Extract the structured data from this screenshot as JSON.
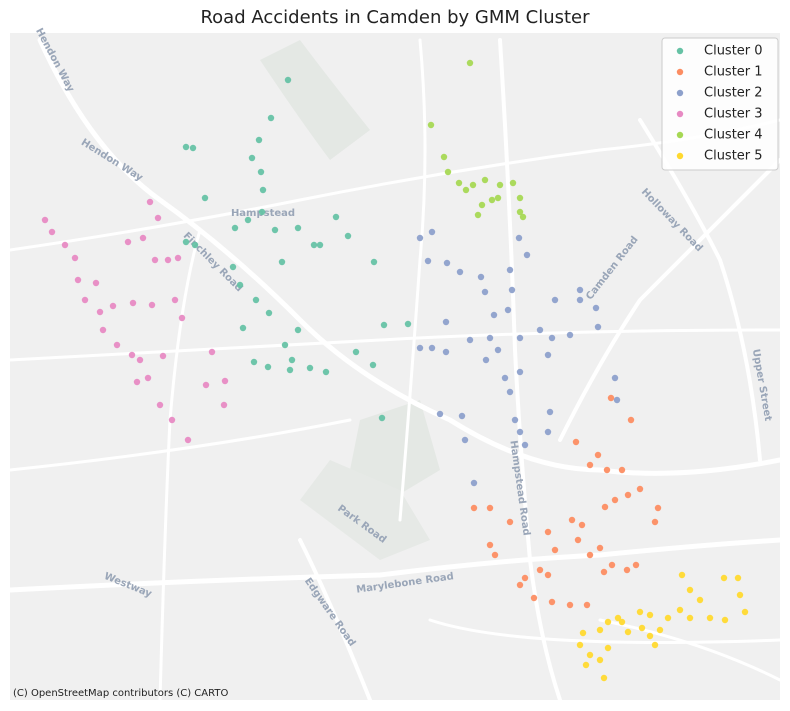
{
  "chart_data": {
    "type": "scatter",
    "title": "Road Accidents in Camden by GMM Cluster",
    "attribution": "(C) OpenStreetMap contributors (C) CARTO",
    "annotations": [
      "Hampstead",
      "Hendon Way",
      "Hendon Way",
      "Finchley Road",
      "Camden Road",
      "Holloway Road",
      "Upper Street",
      "Hampstead Road",
      "Park Road",
      "Marylebone Road",
      "Westway",
      "Edgware Road"
    ],
    "xlim": [
      -0.216,
      -0.1005
    ],
    "ylim": [
      51.508,
      51.5747
    ],
    "legend": "upper right",
    "series": [
      {
        "name": "Cluster 0",
        "color": "#66c2a5",
        "x": [
          -0.1743,
          -0.17685,
          -0.17865,
          -0.1797,
          -0.17835,
          -0.17805,
          -0.1896,
          -0.18855,
          -0.18675,
          -0.18225,
          -0.1803,
          -0.1782,
          -0.17625,
          -0.1728,
          -0.1704,
          -0.1671,
          -0.1653,
          -0.1614,
          -0.1752,
          -0.1815,
          -0.1791,
          -0.17715,
          -0.18105,
          -0.17475,
          -0.1737,
          -0.1773,
          -0.174,
          -0.171,
          -0.1686,
          -0.16155,
          -0.1599,
          -0.1563,
          -0.1641,
          -0.1602,
          -0.1728,
          -0.1794,
          -0.18825,
          -0.1896,
          -0.18255,
          -0.1695
        ],
        "values": [
          51.57,
          51.5662,
          51.564,
          51.5622,
          51.5608,
          51.559,
          51.5633,
          51.5632,
          51.5582,
          51.5552,
          51.556,
          51.5568,
          51.555,
          51.5552,
          51.5535,
          51.5563,
          51.5544,
          51.5518,
          51.5518,
          51.5495,
          51.548,
          51.5467,
          51.5452,
          51.5435,
          51.542,
          51.5413,
          51.541,
          51.5412,
          51.5408,
          51.5415,
          51.5455,
          51.5456,
          51.5428,
          51.5362,
          51.545,
          51.5418,
          51.5535,
          51.5538,
          51.5513,
          51.5535
        ]
      },
      {
        "name": "Cluster 1",
        "color": "#fc8d62",
        "x": [
          -0.12285,
          -0.12585,
          -0.1311,
          -0.1278,
          -0.129,
          -0.12645,
          -0.1242,
          -0.1215,
          -0.1233,
          -0.12525,
          -0.12675,
          -0.1317,
          -0.1302,
          -0.1308,
          -0.1353,
          -0.144,
          -0.1464,
          -0.141,
          -0.144,
          -0.14325,
          -0.13875,
          -0.1395,
          -0.1365,
          -0.1353,
          -0.1374,
          -0.1347,
          -0.132,
          -0.129,
          -0.1275,
          -0.1257,
          -0.12345,
          -0.1221,
          -0.11925,
          -0.1188,
          -0.1269,
          -0.13425,
          -0.12945
        ],
        "values": [
          51.536,
          51.5382,
          51.5338,
          51.5325,
          51.5315,
          51.531,
          51.531,
          51.5291,
          51.5285,
          51.528,
          51.5273,
          51.526,
          51.5255,
          51.524,
          51.5248,
          51.5272,
          51.5272,
          51.5258,
          51.5235,
          51.5225,
          51.5202,
          51.5195,
          51.521,
          51.5205,
          51.5182,
          51.5178,
          51.5175,
          51.5225,
          51.5232,
          51.5215,
          51.521,
          51.5215,
          51.5258,
          51.5272,
          51.5208,
          51.523,
          51.5175
        ]
      },
      {
        "name": "Cluster 2",
        "color": "#8da0cb",
        "x": [
          -0.1527,
          -0.1545,
          -0.1533,
          -0.15045,
          -0.1485,
          -0.14535,
          -0.14475,
          -0.141,
          -0.1407,
          -0.1413,
          -0.1434,
          -0.1506,
          -0.1545,
          -0.1527,
          -0.1506,
          -0.147,
          -0.144,
          -0.1395,
          -0.1365,
          -0.1347,
          -0.13425,
          -0.1305,
          -0.1305,
          -0.1278,
          -0.132,
          -0.1353,
          -0.1395,
          -0.14175,
          -0.141,
          -0.14025,
          -0.1395,
          -0.13875,
          -0.1353,
          -0.135,
          -0.12525,
          -0.12495,
          -0.1482,
          -0.1515,
          -0.1464,
          -0.14775,
          -0.1281,
          -0.1446,
          -0.1428,
          -0.13965,
          -0.13845
        ],
        "values": [
          51.5548,
          51.5542,
          51.5519,
          51.5517,
          51.5508,
          51.5503,
          51.5488,
          51.551,
          51.549,
          51.547,
          51.5465,
          51.5458,
          51.5432,
          51.5432,
          51.5428,
          51.544,
          51.5442,
          51.5442,
          51.545,
          51.5442,
          51.548,
          51.549,
          51.548,
          51.5453,
          51.5445,
          51.5425,
          51.5408,
          51.5402,
          51.5388,
          51.536,
          51.5348,
          51.5335,
          51.5348,
          51.5368,
          51.5402,
          51.538,
          51.5364,
          51.5366,
          51.5297,
          51.534,
          51.5472,
          51.542,
          51.543,
          51.5542,
          51.5525
        ]
      },
      {
        "name": "Cluster 3",
        "color": "#e78ac3",
        "x": [
          -0.21075,
          -0.2097,
          -0.20775,
          -0.20625,
          -0.2058,
          -0.2031,
          -0.20475,
          -0.2025,
          -0.20205,
          -0.19995,
          -0.1977,
          -0.1965,
          -0.1953,
          -0.1935,
          -0.1917,
          -0.1893,
          -0.195,
          -0.1938,
          -0.19605,
          -0.1983,
          -0.19425,
          -0.1923,
          -0.1908,
          -0.19125,
          -0.1902,
          -0.1947,
          -0.19755,
          -0.20055,
          -0.1857,
          -0.1839,
          -0.1866,
          -0.18375,
          -0.19695,
          -0.19305
        ],
        "values": [
          51.556,
          51.5548,
          51.5535,
          51.5522,
          51.55,
          51.5497,
          51.548,
          51.5468,
          51.545,
          51.5435,
          51.5425,
          51.542,
          51.5402,
          51.5375,
          51.536,
          51.534,
          51.5578,
          51.5562,
          51.5542,
          51.5538,
          51.552,
          51.552,
          51.5522,
          51.548,
          51.5462,
          51.5475,
          51.5477,
          51.5474,
          51.5428,
          51.5375,
          51.5395,
          51.5399,
          51.5398,
          51.5424
        ]
      },
      {
        "name": "Cluster 4",
        "color": "#a6d854",
        "x": [
          -0.147,
          -0.15285,
          -0.1509,
          -0.14865,
          -0.14655,
          -0.14475,
          -0.1425,
          -0.14055,
          -0.1428,
          -0.1452,
          -0.1476,
          -0.1458,
          -0.1395,
          -0.1395,
          -0.13905,
          -0.1503,
          -0.1437
        ],
        "values": [
          51.5717,
          51.5655,
          51.5623,
          51.5597,
          51.5595,
          51.56,
          51.5595,
          51.5597,
          51.5582,
          51.5575,
          51.559,
          51.5565,
          51.5582,
          51.5568,
          51.5563,
          51.5608,
          51.558
        ]
      },
      {
        "name": "Cluster 5",
        "color": "#ffd92f",
        "x": [
          -0.1152,
          -0.114,
          -0.1089,
          -0.1068,
          -0.1065,
          -0.10575,
          -0.1125,
          -0.1155,
          -0.1173,
          -0.12,
          -0.1215,
          -0.1242,
          -0.1263,
          -0.1275,
          -0.13005,
          -0.1305,
          -0.129,
          -0.1296,
          -0.1275,
          -0.1263,
          -0.1233,
          -0.1212,
          -0.12,
          -0.11925,
          -0.1185,
          -0.114,
          -0.111,
          -0.10875,
          -0.1248,
          -0.1269
        ],
        "values": [
          51.5205,
          51.519,
          51.5202,
          51.5202,
          51.5185,
          51.5168,
          51.518,
          51.517,
          51.5162,
          51.5165,
          51.5168,
          51.5158,
          51.5158,
          51.515,
          51.5147,
          51.5135,
          51.5125,
          51.5115,
          51.512,
          51.5132,
          51.5148,
          51.5152,
          51.5144,
          51.5135,
          51.515,
          51.5162,
          51.5162,
          51.516,
          51.5162,
          51.5102
        ]
      }
    ]
  }
}
